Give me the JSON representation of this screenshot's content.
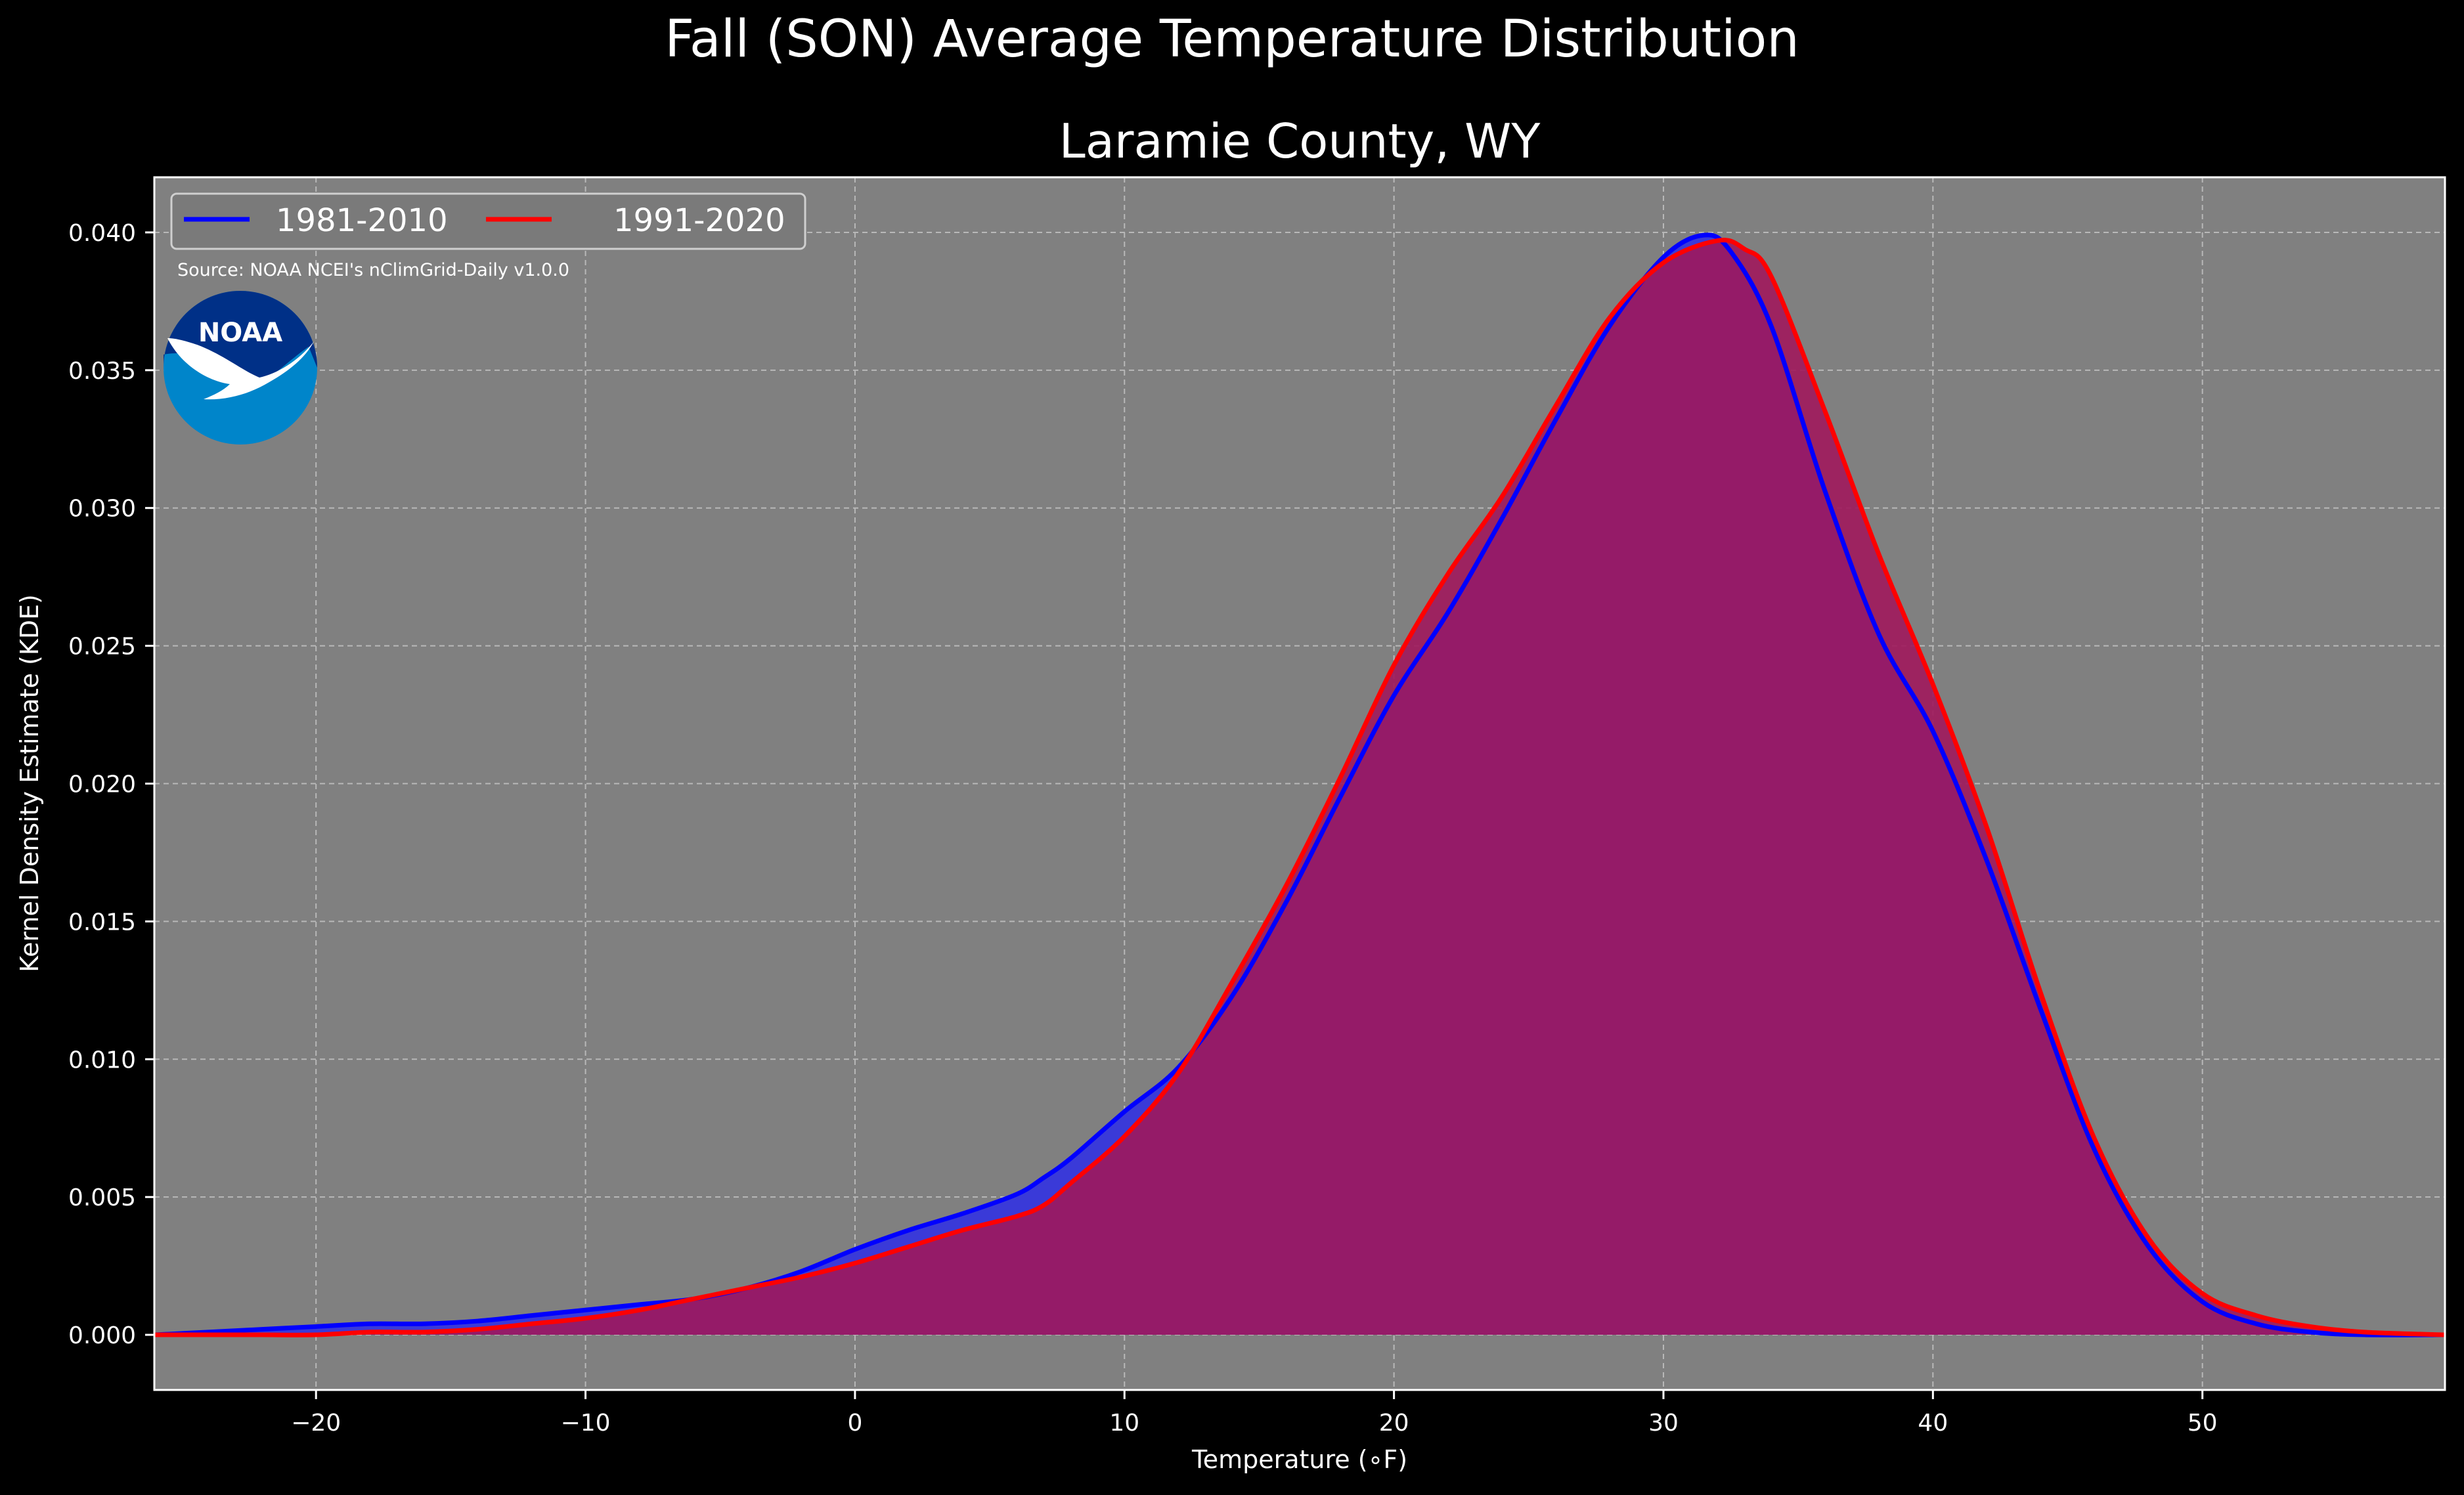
{
  "chart_data": {
    "type": "area",
    "suptitle": "Fall (SON) Average Temperature Distribution",
    "title": "Laramie County, WY",
    "xlabel": "Temperature (∘F)",
    "ylabel": "Kernel Density Estimate (KDE)",
    "xlim": [
      -26,
      59
    ],
    "ylim": [
      -0.002,
      0.042
    ],
    "x_ticks": [
      -20,
      -10,
      0,
      10,
      20,
      30,
      40,
      50
    ],
    "x_tick_labels": [
      "−20",
      "−10",
      "0",
      "10",
      "20",
      "30",
      "40",
      "50"
    ],
    "y_ticks": [
      0.0,
      0.005,
      0.01,
      0.015,
      0.02,
      0.025,
      0.03,
      0.035,
      0.04
    ],
    "y_tick_labels": [
      "0.000",
      "0.005",
      "0.010",
      "0.015",
      "0.020",
      "0.025",
      "0.030",
      "0.035",
      "0.040"
    ],
    "grid": true,
    "legend_position": "upper-left",
    "source_note": "Source: NOAA NCEI's nClimGrid-Daily v1.0.0",
    "logo_text": "NOAA",
    "colors": {
      "background": "#000000",
      "plot_background": "#808080",
      "fill_1981": "#3a3ad8",
      "line_1981": "#0000ff",
      "fill_1991": "#a0185c",
      "line_1991": "#ff0000",
      "logo_dark": "#003087",
      "logo_light": "#0085ca"
    },
    "series": [
      {
        "name": "1981-2010",
        "color": "#0000ff",
        "x": [
          -26,
          -24,
          -22,
          -20,
          -18,
          -16,
          -14,
          -12,
          -10,
          -8,
          -6,
          -4,
          -2,
          0,
          2,
          4,
          6,
          7,
          8,
          10,
          12,
          14,
          16,
          18,
          20,
          22,
          24,
          26,
          28,
          30,
          31.5,
          32.5,
          34,
          36,
          38,
          40,
          42,
          44,
          46,
          48,
          50,
          52,
          54,
          56,
          59
        ],
        "y": [
          0.0,
          0.0001,
          0.0002,
          0.0003,
          0.0004,
          0.0004,
          0.0005,
          0.0007,
          0.0009,
          0.0011,
          0.0013,
          0.0017,
          0.0023,
          0.0031,
          0.0038,
          0.0044,
          0.0051,
          0.0057,
          0.0064,
          0.0081,
          0.0097,
          0.0123,
          0.0157,
          0.0195,
          0.0232,
          0.0262,
          0.0296,
          0.0332,
          0.0366,
          0.0391,
          0.0399,
          0.0393,
          0.0366,
          0.0306,
          0.0254,
          0.0219,
          0.0172,
          0.0118,
          0.0067,
          0.0032,
          0.0012,
          0.0004,
          0.0001,
          0.0,
          0.0
        ]
      },
      {
        "name": "1991-2020",
        "color": "#ff0000",
        "x": [
          -26,
          -24,
          -22,
          -20,
          -18,
          -16,
          -14,
          -12,
          -10,
          -8,
          -6,
          -4,
          -2,
          0,
          2,
          4,
          6,
          7,
          8,
          10,
          12,
          14,
          16,
          18,
          20,
          22,
          24,
          26,
          28,
          30,
          32,
          33,
          34,
          36,
          38,
          40,
          42,
          44,
          46,
          48,
          50,
          52,
          54,
          56,
          59
        ],
        "y": [
          0.0,
          0.0,
          0.0,
          0.0,
          0.0001,
          0.0001,
          0.0002,
          0.0004,
          0.0006,
          0.0009,
          0.0013,
          0.0017,
          0.0021,
          0.0026,
          0.0032,
          0.0038,
          0.0043,
          0.0047,
          0.0055,
          0.0072,
          0.0095,
          0.0128,
          0.0163,
          0.0202,
          0.0243,
          0.0276,
          0.0304,
          0.0337,
          0.0369,
          0.0389,
          0.0397,
          0.0394,
          0.0384,
          0.0335,
          0.0283,
          0.0236,
          0.0184,
          0.0124,
          0.0071,
          0.0035,
          0.0015,
          0.0007,
          0.0003,
          0.0001,
          0.0
        ]
      }
    ]
  }
}
